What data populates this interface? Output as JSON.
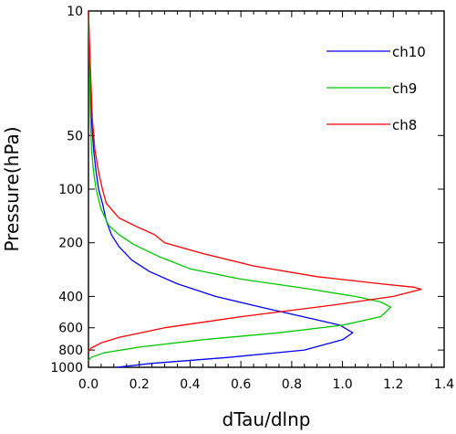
{
  "chart_data": {
    "type": "line",
    "xlabel": "dTau/dlnp",
    "ylabel": "Pressure(hPa)",
    "x_axis": {
      "range": [
        0.0,
        1.4
      ],
      "ticks": [
        0.0,
        0.2,
        0.4,
        0.6,
        0.8,
        1.0,
        1.2,
        1.4
      ],
      "tick_labels": [
        "0.0",
        "0.2",
        "0.4",
        "0.6",
        "0.8",
        "1.0",
        "1.2",
        "1.4"
      ]
    },
    "y_axis": {
      "scale": "log",
      "reversed": true,
      "range": [
        10,
        1000
      ],
      "ticks": [
        10,
        50,
        100,
        200,
        400,
        600,
        800,
        1000
      ],
      "tick_labels": [
        "10",
        "50",
        "100",
        "200",
        "400",
        "600",
        "800",
        "1000"
      ]
    },
    "grid": false,
    "legend_position": "top-right",
    "series": [
      {
        "name": "ch10",
        "color": "#0000ff",
        "points": [
          [
            0.0,
            10
          ],
          [
            0.005,
            20
          ],
          [
            0.012,
            40
          ],
          [
            0.02,
            60
          ],
          [
            0.03,
            80
          ],
          [
            0.04,
            100
          ],
          [
            0.055,
            120
          ],
          [
            0.07,
            150
          ],
          [
            0.09,
            180
          ],
          [
            0.12,
            210
          ],
          [
            0.17,
            250
          ],
          [
            0.24,
            290
          ],
          [
            0.35,
            340
          ],
          [
            0.5,
            400
          ],
          [
            0.68,
            460
          ],
          [
            0.87,
            530
          ],
          [
            0.99,
            580
          ],
          [
            1.04,
            640
          ],
          [
            1.0,
            700
          ],
          [
            0.85,
            800
          ],
          [
            0.55,
            880
          ],
          [
            0.25,
            950
          ],
          [
            0.11,
            1000
          ]
        ]
      },
      {
        "name": "ch9",
        "color": "#00c800",
        "points": [
          [
            0.0,
            10
          ],
          [
            0.004,
            20
          ],
          [
            0.008,
            40
          ],
          [
            0.012,
            60
          ],
          [
            0.02,
            80
          ],
          [
            0.03,
            100
          ],
          [
            0.05,
            130
          ],
          [
            0.08,
            160
          ],
          [
            0.12,
            180
          ],
          [
            0.18,
            205
          ],
          [
            0.28,
            240
          ],
          [
            0.4,
            280
          ],
          [
            0.6,
            320
          ],
          [
            0.85,
            360
          ],
          [
            1.05,
            400
          ],
          [
            1.15,
            430
          ],
          [
            1.19,
            460
          ],
          [
            1.15,
            520
          ],
          [
            1.0,
            580
          ],
          [
            0.75,
            640
          ],
          [
            0.45,
            700
          ],
          [
            0.2,
            770
          ],
          [
            0.06,
            830
          ],
          [
            0.01,
            880
          ],
          [
            0.0,
            920
          ]
        ]
      },
      {
        "name": "ch8",
        "color": "#ff0000",
        "points": [
          [
            0.0,
            10
          ],
          [
            0.007,
            20
          ],
          [
            0.015,
            40
          ],
          [
            0.025,
            60
          ],
          [
            0.04,
            80
          ],
          [
            0.055,
            100
          ],
          [
            0.07,
            120
          ],
          [
            0.12,
            145
          ],
          [
            0.2,
            165
          ],
          [
            0.26,
            180
          ],
          [
            0.3,
            200
          ],
          [
            0.45,
            230
          ],
          [
            0.65,
            270
          ],
          [
            0.9,
            310
          ],
          [
            1.15,
            340
          ],
          [
            1.28,
            355
          ],
          [
            1.31,
            365
          ],
          [
            1.2,
            400
          ],
          [
            0.95,
            450
          ],
          [
            0.6,
            520
          ],
          [
            0.3,
            600
          ],
          [
            0.12,
            680
          ],
          [
            0.05,
            730
          ],
          [
            0.01,
            780
          ],
          [
            0.0,
            820
          ]
        ]
      }
    ]
  }
}
